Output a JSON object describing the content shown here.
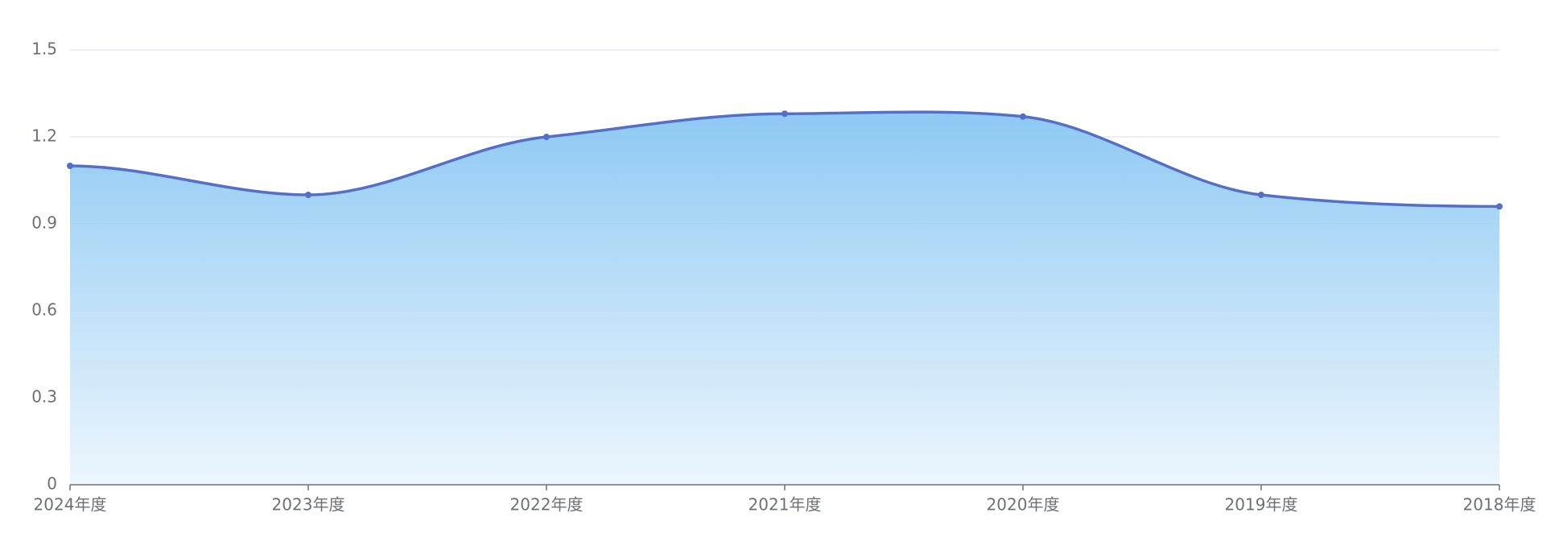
{
  "chart_data": {
    "type": "area",
    "categories": [
      "2024年度",
      "2023年度",
      "2022年度",
      "2021年度",
      "2020年度",
      "2019年度",
      "2018年度"
    ],
    "values": [
      1.1,
      1.0,
      1.2,
      1.28,
      1.27,
      1.0,
      0.96
    ],
    "color": "#5470c6",
    "ylim": [
      0,
      1.5
    ],
    "yticks": [
      0,
      0.3,
      0.6,
      0.9,
      1.2,
      1.5
    ],
    "grid": true
  }
}
